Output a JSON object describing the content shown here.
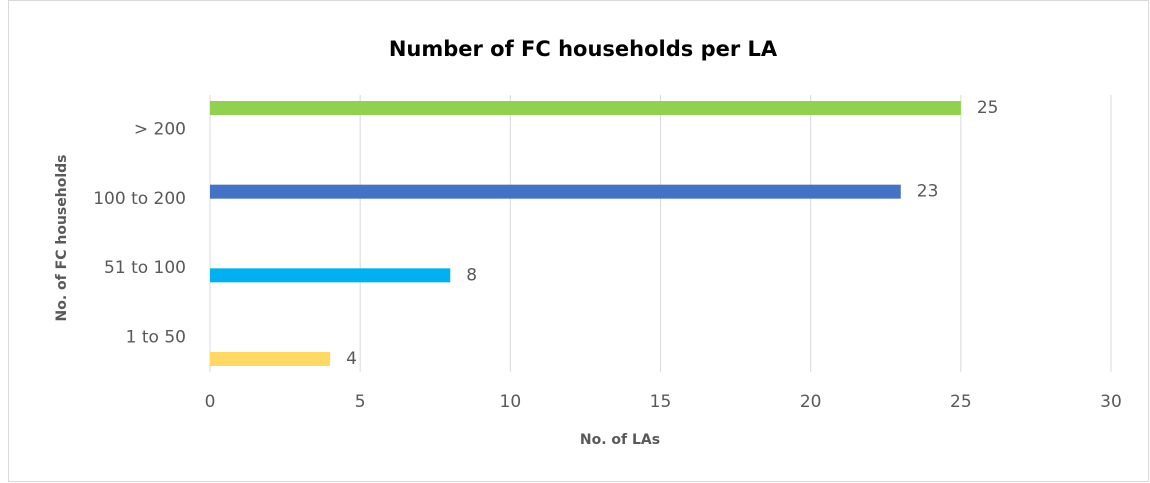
{
  "chart_data": {
    "type": "barh",
    "title": "Number of FC households per LA",
    "categories": [
      "> 200",
      "100 to 200",
      "51 to 100",
      "1 to 50"
    ],
    "values": [
      25,
      23,
      8,
      4
    ],
    "colors": [
      "#92d050",
      "#4472c4",
      "#00b0f0",
      "#ffd966"
    ],
    "xlabel": "No. of LAs",
    "ylabel": "No. of FC households",
    "xlim": [
      0,
      30
    ],
    "xticks": [
      0,
      5,
      10,
      15,
      20,
      25,
      30
    ],
    "grid": true
  }
}
